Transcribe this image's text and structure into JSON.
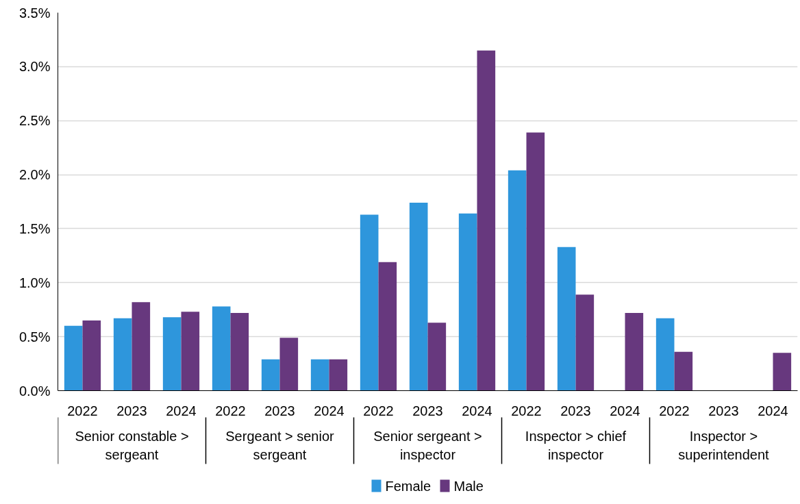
{
  "chart_data": {
    "type": "bar",
    "categories": [
      "2022",
      "2023",
      "2024",
      "2022",
      "2023",
      "2024",
      "2022",
      "2023",
      "2024",
      "2022",
      "2023",
      "2024",
      "2022",
      "2023",
      "2024"
    ],
    "annotations": [
      "Senior constable > sergeant",
      "Sergeant > senior sergeant",
      "Senior sergeant > inspector",
      "Inspector > chief inspector",
      "Inspector > superintendent"
    ],
    "series": [
      {
        "name": "Female",
        "color": "#2e96dc",
        "values": [
          0.6,
          0.67,
          0.68,
          0.78,
          0.29,
          0.29,
          1.63,
          1.74,
          1.64,
          2.04,
          1.33,
          0,
          0.67,
          0,
          0
        ]
      },
      {
        "name": "Male",
        "color": "#67387e",
        "values": [
          0.65,
          0.82,
          0.73,
          0.72,
          0.49,
          0.29,
          1.19,
          0.63,
          3.15,
          2.39,
          0.89,
          0.72,
          0.36,
          0,
          0.35
        ]
      }
    ],
    "ylim": [
      0,
      3.5
    ],
    "yticks": [
      {
        "value": 0,
        "label": "0.0%"
      },
      {
        "value": 0.5,
        "label": "0.5%"
      },
      {
        "value": 1,
        "label": "1.0%"
      },
      {
        "value": 1.5,
        "label": "1.5%"
      },
      {
        "value": 2,
        "label": "2.0%"
      },
      {
        "value": 2.5,
        "label": "2.5%"
      },
      {
        "value": 3,
        "label": "3.0%"
      },
      {
        "value": 3.5,
        "label": "3.5%"
      }
    ],
    "grid": "y",
    "legend": "bottom"
  }
}
